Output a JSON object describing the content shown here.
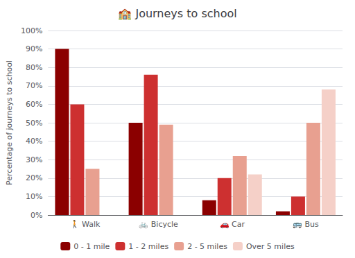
{
  "chart_data": {
    "type": "bar",
    "title": "🏫 Journeys to school",
    "ylabel": "Percentage of journeys to school",
    "categories": [
      "🚶 Walk",
      "🚲 Bicycle",
      "🚗 Car",
      "🚌 Bus"
    ],
    "series": [
      {
        "name": "0 - 1 mile",
        "color": "#8b0000",
        "values": [
          90,
          50,
          8,
          2
        ]
      },
      {
        "name": "1 - 2 miles",
        "color": "#cd3030",
        "values": [
          60,
          76,
          20,
          10
        ]
      },
      {
        "name": "2 - 5 miles",
        "color": "#e8a090",
        "values": [
          25,
          49,
          32,
          50
        ]
      },
      {
        "name": "Over 5 miles",
        "color": "#f5d0c8",
        "values": [
          0,
          0,
          22,
          68
        ]
      }
    ],
    "ylim": [
      0,
      100
    ],
    "yticks": [
      {
        "value": 0,
        "label": "0%"
      },
      {
        "value": 10,
        "label": "10%"
      },
      {
        "value": 20,
        "label": "20%"
      },
      {
        "value": 30,
        "label": "30%"
      },
      {
        "value": 40,
        "label": "40%"
      },
      {
        "value": 50,
        "label": "50%"
      },
      {
        "value": 60,
        "label": "60%"
      },
      {
        "value": 70,
        "label": "70%"
      },
      {
        "value": 80,
        "label": "80%"
      },
      {
        "value": 90,
        "label": "90%"
      },
      {
        "value": 100,
        "label": "100%"
      }
    ],
    "grid": true,
    "legend": "bottom"
  }
}
